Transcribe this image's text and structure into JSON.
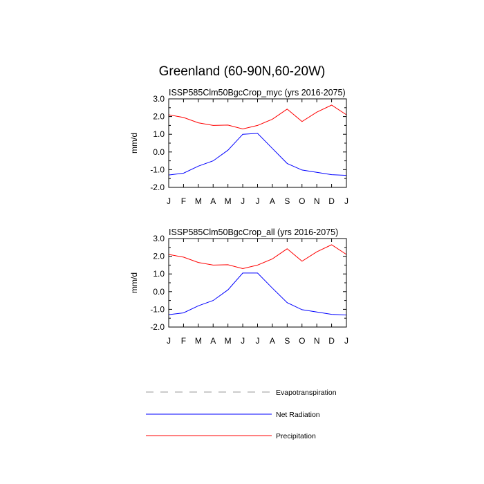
{
  "chart_data": {
    "type": "line",
    "title": "Greenland (60-90N,60-20W)",
    "ylabel": "mm/d",
    "ylim": [
      -2.0,
      3.0
    ],
    "yticks": [
      3.0,
      2.0,
      1.0,
      0.0,
      -1.0,
      -2.0
    ],
    "ytick_labels": [
      "3.0",
      "2.0",
      "1.0",
      "0.0",
      "-1.0",
      "-2.0"
    ],
    "categories": [
      "J",
      "F",
      "M",
      "A",
      "M",
      "J",
      "J",
      "A",
      "S",
      "O",
      "N",
      "D",
      "J"
    ],
    "grid": false,
    "legend": [
      {
        "label": "Evapotranspiration",
        "color": "#999999",
        "dash": "dashed"
      },
      {
        "label": "Net Radiation",
        "color": "#0000ff",
        "dash": "solid"
      },
      {
        "label": "Precipitation",
        "color": "#ff0000",
        "dash": "solid"
      }
    ],
    "panels": [
      {
        "title": "ISSP585Clm50BgcCrop_myc (yrs 2016-2075)",
        "series": [
          {
            "name": "Net Radiation",
            "color": "#0000ff",
            "values": [
              -1.3,
              -1.2,
              -0.8,
              -0.5,
              0.1,
              1.0,
              1.05,
              0.2,
              -0.65,
              -1.02,
              -1.15,
              -1.28,
              -1.32
            ]
          },
          {
            "name": "Precipitation",
            "color": "#ff0000",
            "values": [
              2.1,
              1.95,
              1.65,
              1.5,
              1.52,
              1.3,
              1.5,
              1.85,
              2.42,
              1.72,
              2.25,
              2.65,
              2.1
            ]
          }
        ]
      },
      {
        "title": "ISSP585Clm50BgcCrop_all (yrs 2016-2075)",
        "series": [
          {
            "name": "Net Radiation",
            "color": "#0000ff",
            "values": [
              -1.3,
              -1.2,
              -0.8,
              -0.5,
              0.1,
              1.05,
              1.05,
              0.2,
              -0.62,
              -1.02,
              -1.15,
              -1.28,
              -1.32
            ]
          },
          {
            "name": "Precipitation",
            "color": "#ff0000",
            "values": [
              2.1,
              1.95,
              1.65,
              1.5,
              1.52,
              1.3,
              1.5,
              1.85,
              2.42,
              1.72,
              2.25,
              2.65,
              2.1
            ]
          }
        ]
      }
    ]
  }
}
